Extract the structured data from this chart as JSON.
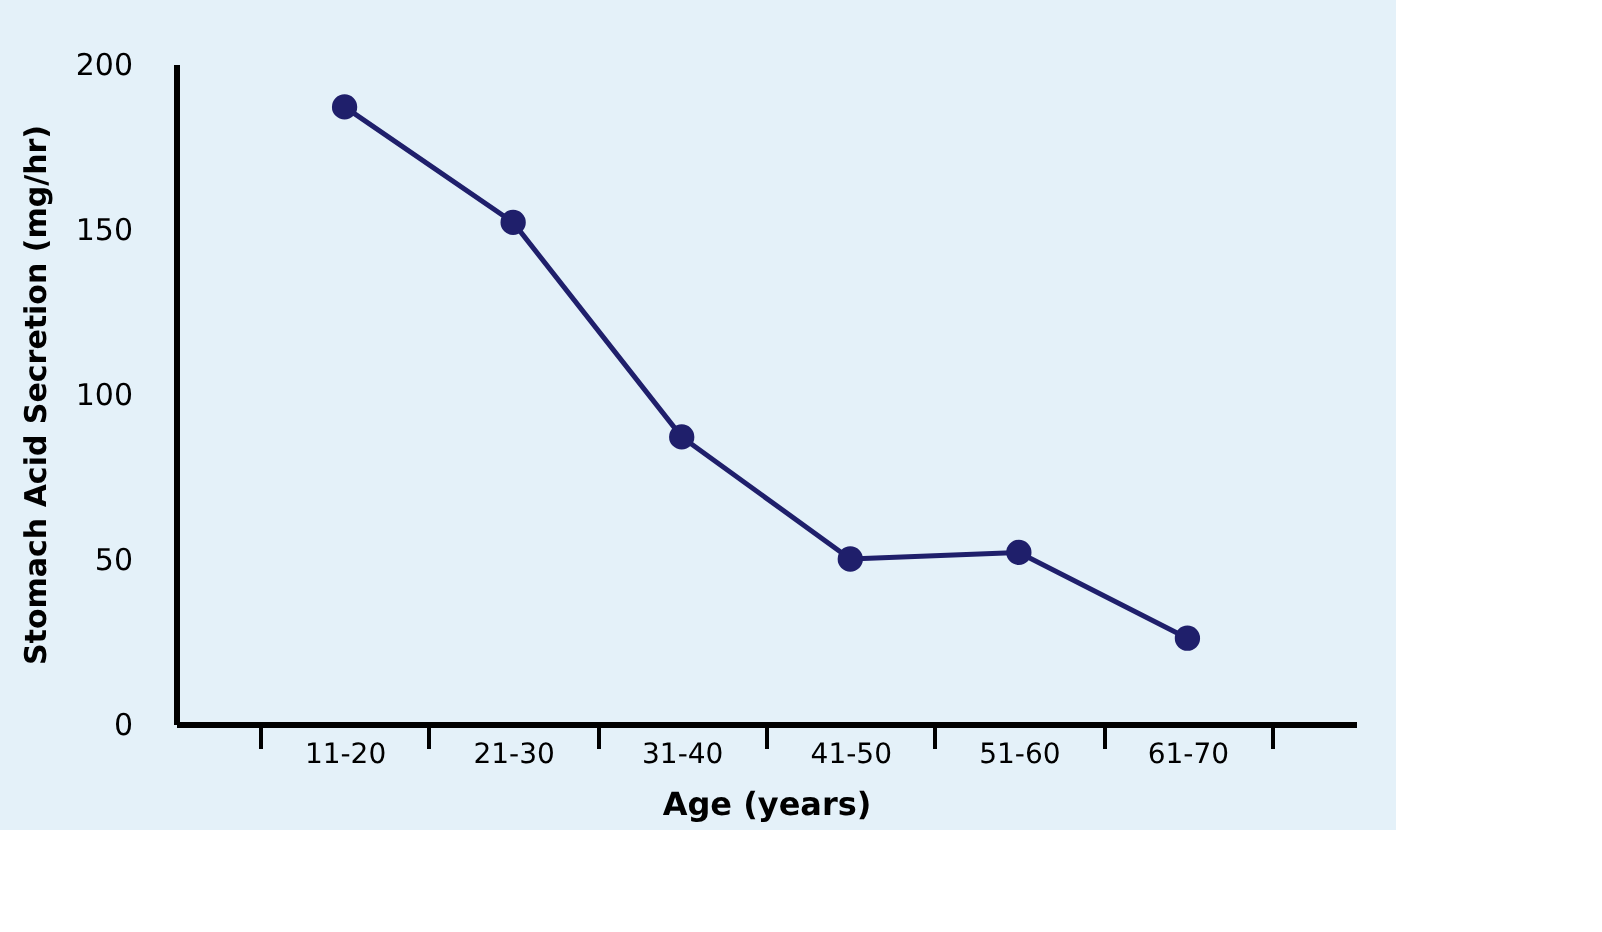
{
  "chart_data": {
    "type": "line",
    "xlabel": "Age (years)",
    "ylabel": "Stomach Acid Secretion (mg/hr)",
    "categories": [
      "11-20",
      "21-30",
      "31-40",
      "41-50",
      "51-60",
      "61-70"
    ],
    "series": [
      {
        "color": "#1f1f6b",
        "values": [
          187,
          152,
          87,
          50,
          52,
          26
        ]
      }
    ],
    "ylim": [
      0,
      200
    ],
    "yticks": [
      0,
      50,
      100,
      150,
      200
    ],
    "grid": false,
    "marker": "circle",
    "line_style": "solid"
  }
}
